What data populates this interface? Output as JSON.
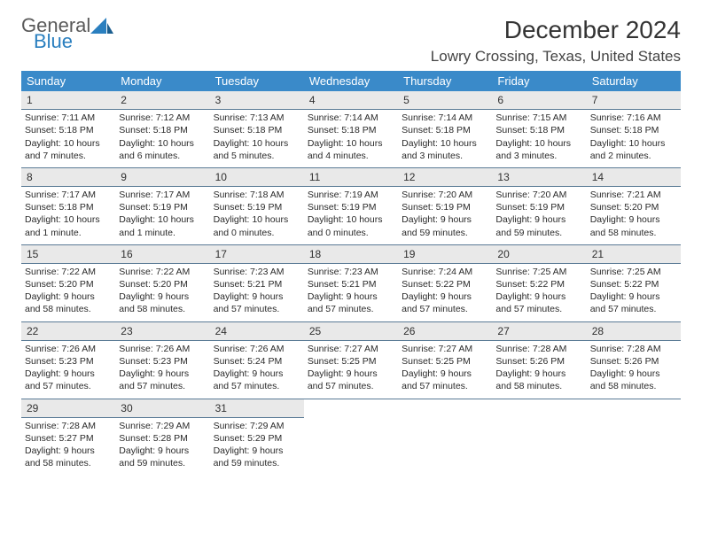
{
  "brand": {
    "line1": "General",
    "line2": "Blue"
  },
  "title": "December 2024",
  "location": "Lowry Crossing, Texas, United States",
  "colors": {
    "header_bg": "#3a8ac9",
    "header_text": "#ffffff",
    "daynum_bg": "#e9e9e9",
    "rule": "#5a7a95",
    "logo_gray": "#5a5a5a",
    "logo_blue": "#2a7fbf",
    "background": "#ffffff",
    "body_text": "#2a2a2a"
  },
  "typography": {
    "title_fontsize": 28,
    "location_fontsize": 17,
    "header_fontsize": 13,
    "daynum_fontsize": 12,
    "cell_fontsize": 10.5
  },
  "weekdays": [
    "Sunday",
    "Monday",
    "Tuesday",
    "Wednesday",
    "Thursday",
    "Friday",
    "Saturday"
  ],
  "weeks": [
    [
      {
        "n": "1",
        "sr": "7:11 AM",
        "ss": "5:18 PM",
        "dl": "10 hours and 7 minutes."
      },
      {
        "n": "2",
        "sr": "7:12 AM",
        "ss": "5:18 PM",
        "dl": "10 hours and 6 minutes."
      },
      {
        "n": "3",
        "sr": "7:13 AM",
        "ss": "5:18 PM",
        "dl": "10 hours and 5 minutes."
      },
      {
        "n": "4",
        "sr": "7:14 AM",
        "ss": "5:18 PM",
        "dl": "10 hours and 4 minutes."
      },
      {
        "n": "5",
        "sr": "7:14 AM",
        "ss": "5:18 PM",
        "dl": "10 hours and 3 minutes."
      },
      {
        "n": "6",
        "sr": "7:15 AM",
        "ss": "5:18 PM",
        "dl": "10 hours and 3 minutes."
      },
      {
        "n": "7",
        "sr": "7:16 AM",
        "ss": "5:18 PM",
        "dl": "10 hours and 2 minutes."
      }
    ],
    [
      {
        "n": "8",
        "sr": "7:17 AM",
        "ss": "5:18 PM",
        "dl": "10 hours and 1 minute."
      },
      {
        "n": "9",
        "sr": "7:17 AM",
        "ss": "5:19 PM",
        "dl": "10 hours and 1 minute."
      },
      {
        "n": "10",
        "sr": "7:18 AM",
        "ss": "5:19 PM",
        "dl": "10 hours and 0 minutes."
      },
      {
        "n": "11",
        "sr": "7:19 AM",
        "ss": "5:19 PM",
        "dl": "10 hours and 0 minutes."
      },
      {
        "n": "12",
        "sr": "7:20 AM",
        "ss": "5:19 PM",
        "dl": "9 hours and 59 minutes."
      },
      {
        "n": "13",
        "sr": "7:20 AM",
        "ss": "5:19 PM",
        "dl": "9 hours and 59 minutes."
      },
      {
        "n": "14",
        "sr": "7:21 AM",
        "ss": "5:20 PM",
        "dl": "9 hours and 58 minutes."
      }
    ],
    [
      {
        "n": "15",
        "sr": "7:22 AM",
        "ss": "5:20 PM",
        "dl": "9 hours and 58 minutes."
      },
      {
        "n": "16",
        "sr": "7:22 AM",
        "ss": "5:20 PM",
        "dl": "9 hours and 58 minutes."
      },
      {
        "n": "17",
        "sr": "7:23 AM",
        "ss": "5:21 PM",
        "dl": "9 hours and 57 minutes."
      },
      {
        "n": "18",
        "sr": "7:23 AM",
        "ss": "5:21 PM",
        "dl": "9 hours and 57 minutes."
      },
      {
        "n": "19",
        "sr": "7:24 AM",
        "ss": "5:22 PM",
        "dl": "9 hours and 57 minutes."
      },
      {
        "n": "20",
        "sr": "7:25 AM",
        "ss": "5:22 PM",
        "dl": "9 hours and 57 minutes."
      },
      {
        "n": "21",
        "sr": "7:25 AM",
        "ss": "5:22 PM",
        "dl": "9 hours and 57 minutes."
      }
    ],
    [
      {
        "n": "22",
        "sr": "7:26 AM",
        "ss": "5:23 PM",
        "dl": "9 hours and 57 minutes."
      },
      {
        "n": "23",
        "sr": "7:26 AM",
        "ss": "5:23 PM",
        "dl": "9 hours and 57 minutes."
      },
      {
        "n": "24",
        "sr": "7:26 AM",
        "ss": "5:24 PM",
        "dl": "9 hours and 57 minutes."
      },
      {
        "n": "25",
        "sr": "7:27 AM",
        "ss": "5:25 PM",
        "dl": "9 hours and 57 minutes."
      },
      {
        "n": "26",
        "sr": "7:27 AM",
        "ss": "5:25 PM",
        "dl": "9 hours and 57 minutes."
      },
      {
        "n": "27",
        "sr": "7:28 AM",
        "ss": "5:26 PM",
        "dl": "9 hours and 58 minutes."
      },
      {
        "n": "28",
        "sr": "7:28 AM",
        "ss": "5:26 PM",
        "dl": "9 hours and 58 minutes."
      }
    ],
    [
      {
        "n": "29",
        "sr": "7:28 AM",
        "ss": "5:27 PM",
        "dl": "9 hours and 58 minutes."
      },
      {
        "n": "30",
        "sr": "7:29 AM",
        "ss": "5:28 PM",
        "dl": "9 hours and 59 minutes."
      },
      {
        "n": "31",
        "sr": "7:29 AM",
        "ss": "5:29 PM",
        "dl": "9 hours and 59 minutes."
      },
      null,
      null,
      null,
      null
    ]
  ],
  "labels": {
    "sunrise": "Sunrise:",
    "sunset": "Sunset:",
    "daylight": "Daylight:"
  }
}
